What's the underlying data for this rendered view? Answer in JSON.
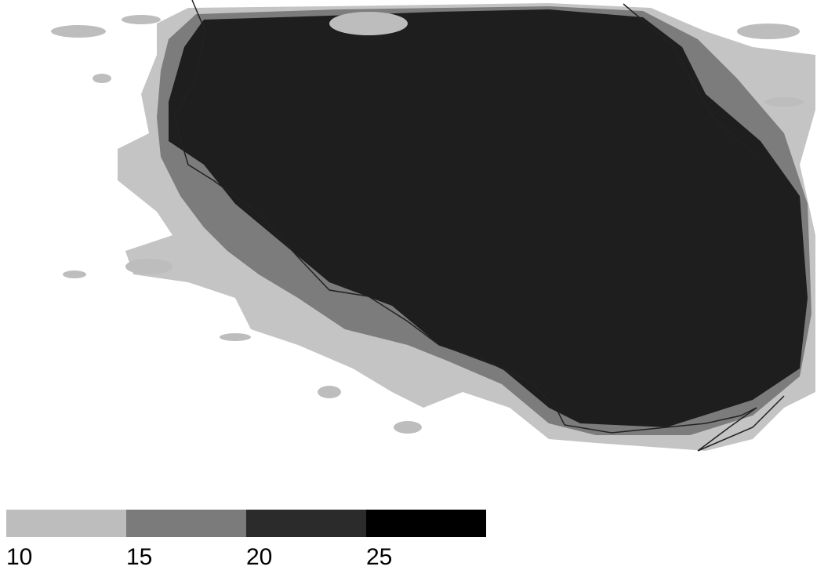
{
  "colorbar": {
    "ticks": [
      10,
      15,
      20,
      25
    ],
    "colors": [
      "#bdbdbd",
      "#7b7b7b",
      "#2b2b2b",
      "#000000"
    ]
  }
}
